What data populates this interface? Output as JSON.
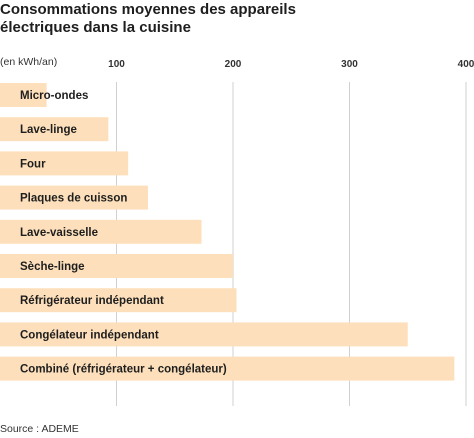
{
  "title_line1": "Consommations moyennes des appareils",
  "title_line2": "électriques dans la cuisine",
  "unit_label": "(en kWh/an)",
  "source": "Source : ADEME",
  "colors": {
    "bar": "#fde0bb",
    "grid": "#d0d0d0"
  },
  "chart_data": {
    "type": "bar",
    "orientation": "horizontal",
    "categories": [
      "Micro-ondes",
      "Lave-linge",
      "Four",
      "Plaques de cuisson",
      "Lave-vaisselle",
      "Sèche-linge",
      "Réfrigérateur indépendant",
      "Congélateur indépendant",
      "Combiné (réfrigérateur + congélateur)"
    ],
    "values": [
      40,
      93,
      110,
      127,
      173,
      200,
      203,
      350,
      390
    ],
    "xlim": [
      0,
      400
    ],
    "ticks": [
      "100",
      "200",
      "300",
      "400"
    ],
    "tick_values": [
      100,
      200,
      300,
      400
    ],
    "grid": true
  }
}
